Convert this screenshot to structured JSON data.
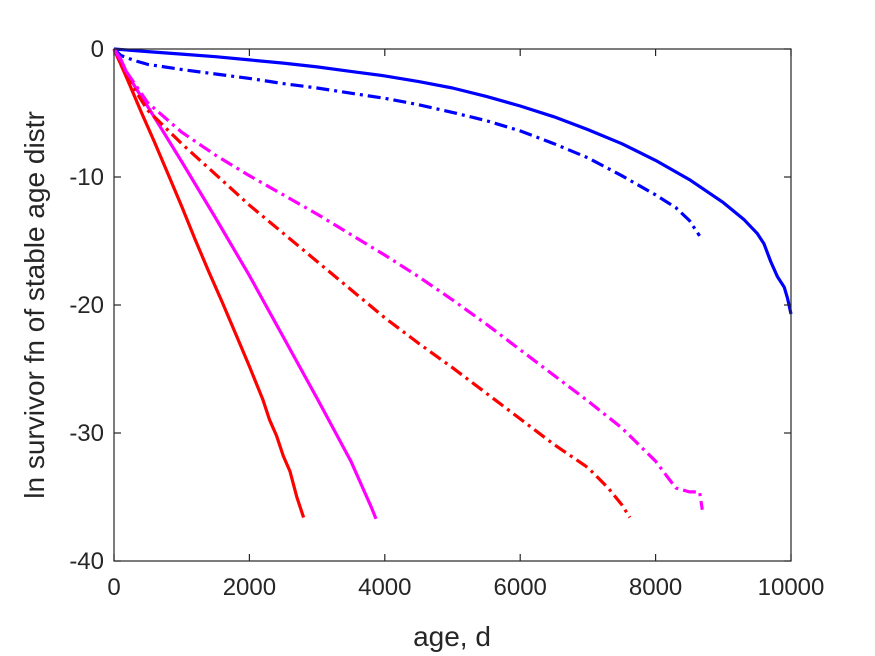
{
  "chart_data": {
    "type": "line",
    "title": "",
    "xlabel": "age, d",
    "ylabel": "ln survivor fn of stable age distr",
    "xlim": [
      0,
      10000
    ],
    "ylim": [
      -40,
      0
    ],
    "xticks": [
      0,
      2000,
      4000,
      6000,
      8000,
      10000
    ],
    "yticks": [
      0,
      -10,
      -20,
      -30,
      -40
    ],
    "xtick_labels": [
      "0",
      "2000",
      "4000",
      "6000",
      "8000",
      "10000"
    ],
    "ytick_labels": [
      "0",
      "-10",
      "-20",
      "-30",
      "-40"
    ],
    "grid": false,
    "legend": null,
    "series": [
      {
        "color": "#0000ff",
        "style": "solid",
        "x": [
          0,
          500,
          1000,
          1500,
          2000,
          2500,
          3000,
          3500,
          4000,
          4500,
          5000,
          5500,
          6000,
          6500,
          7000,
          7500,
          8000,
          8500,
          9000,
          9300,
          9500,
          9600,
          9700,
          9800,
          9900,
          9950,
          10000
        ],
        "y": [
          0,
          -0.2,
          -0.4,
          -0.6,
          -0.85,
          -1.1,
          -1.4,
          -1.75,
          -2.1,
          -2.55,
          -3.05,
          -3.7,
          -4.45,
          -5.3,
          -6.3,
          -7.4,
          -8.7,
          -10.2,
          -12.0,
          -13.3,
          -14.4,
          -15.2,
          -16.6,
          -17.8,
          -18.6,
          -19.5,
          -20.7
        ]
      },
      {
        "color": "#0000ff",
        "style": "dashdot",
        "x": [
          0,
          100,
          300,
          500,
          1000,
          1500,
          2000,
          2500,
          3000,
          3500,
          4000,
          4500,
          5000,
          5500,
          6000,
          6500,
          7000,
          7500,
          8000,
          8300,
          8500,
          8650
        ],
        "y": [
          0,
          -0.5,
          -0.9,
          -1.2,
          -1.6,
          -1.95,
          -2.3,
          -2.7,
          -3.05,
          -3.45,
          -3.85,
          -4.35,
          -4.95,
          -5.6,
          -6.4,
          -7.4,
          -8.5,
          -9.9,
          -11.4,
          -12.4,
          -13.4,
          -14.6
        ]
      },
      {
        "color": "#ff0000",
        "style": "solid",
        "x": [
          0,
          100,
          200,
          400,
          600,
          800,
          1000,
          1200,
          1400,
          1600,
          1800,
          2000,
          2200,
          2300,
          2400,
          2500,
          2600,
          2700,
          2800
        ],
        "y": [
          0,
          -1.2,
          -2.4,
          -4.9,
          -7.3,
          -9.8,
          -12.3,
          -14.9,
          -17.4,
          -19.8,
          -22.3,
          -24.8,
          -27.4,
          -29.0,
          -30.2,
          -31.8,
          -33.0,
          -35.0,
          -36.6
        ]
      },
      {
        "color": "#ff00ff",
        "style": "solid",
        "x": [
          0,
          100,
          200,
          400,
          500,
          1000,
          1500,
          2000,
          2500,
          3000,
          3500,
          3700,
          3800,
          3870
        ],
        "y": [
          0,
          -0.8,
          -2.0,
          -3.7,
          -4.5,
          -8.8,
          -13.2,
          -17.7,
          -22.5,
          -27.3,
          -32.2,
          -34.6,
          -35.8,
          -36.7
        ]
      },
      {
        "color": "#ff0000",
        "style": "dashdot",
        "x": [
          0,
          100,
          200,
          500,
          1000,
          1500,
          2000,
          2500,
          3000,
          3500,
          4000,
          4500,
          5000,
          5500,
          6000,
          6500,
          7000,
          7300,
          7500,
          7620
        ],
        "y": [
          0,
          -1.2,
          -2.3,
          -4.8,
          -7.4,
          -9.8,
          -12.2,
          -14.4,
          -16.6,
          -18.8,
          -21.0,
          -23.0,
          -24.9,
          -26.9,
          -28.9,
          -30.9,
          -32.7,
          -34.3,
          -35.6,
          -36.6
        ]
      },
      {
        "color": "#ff00ff",
        "style": "dashdot",
        "x": [
          0,
          100,
          200,
          500,
          1000,
          1500,
          2000,
          2500,
          3000,
          3500,
          4000,
          4500,
          5000,
          5500,
          6000,
          6500,
          7000,
          7500,
          8000,
          8200,
          8300,
          8500,
          8650,
          8690
        ],
        "y": [
          0,
          -0.9,
          -1.9,
          -4.2,
          -6.5,
          -8.3,
          -9.9,
          -11.4,
          -12.9,
          -14.5,
          -16.1,
          -17.8,
          -19.6,
          -21.5,
          -23.5,
          -25.5,
          -27.5,
          -29.6,
          -32.2,
          -33.6,
          -34.3,
          -34.6,
          -34.6,
          -36.0
        ]
      }
    ]
  }
}
